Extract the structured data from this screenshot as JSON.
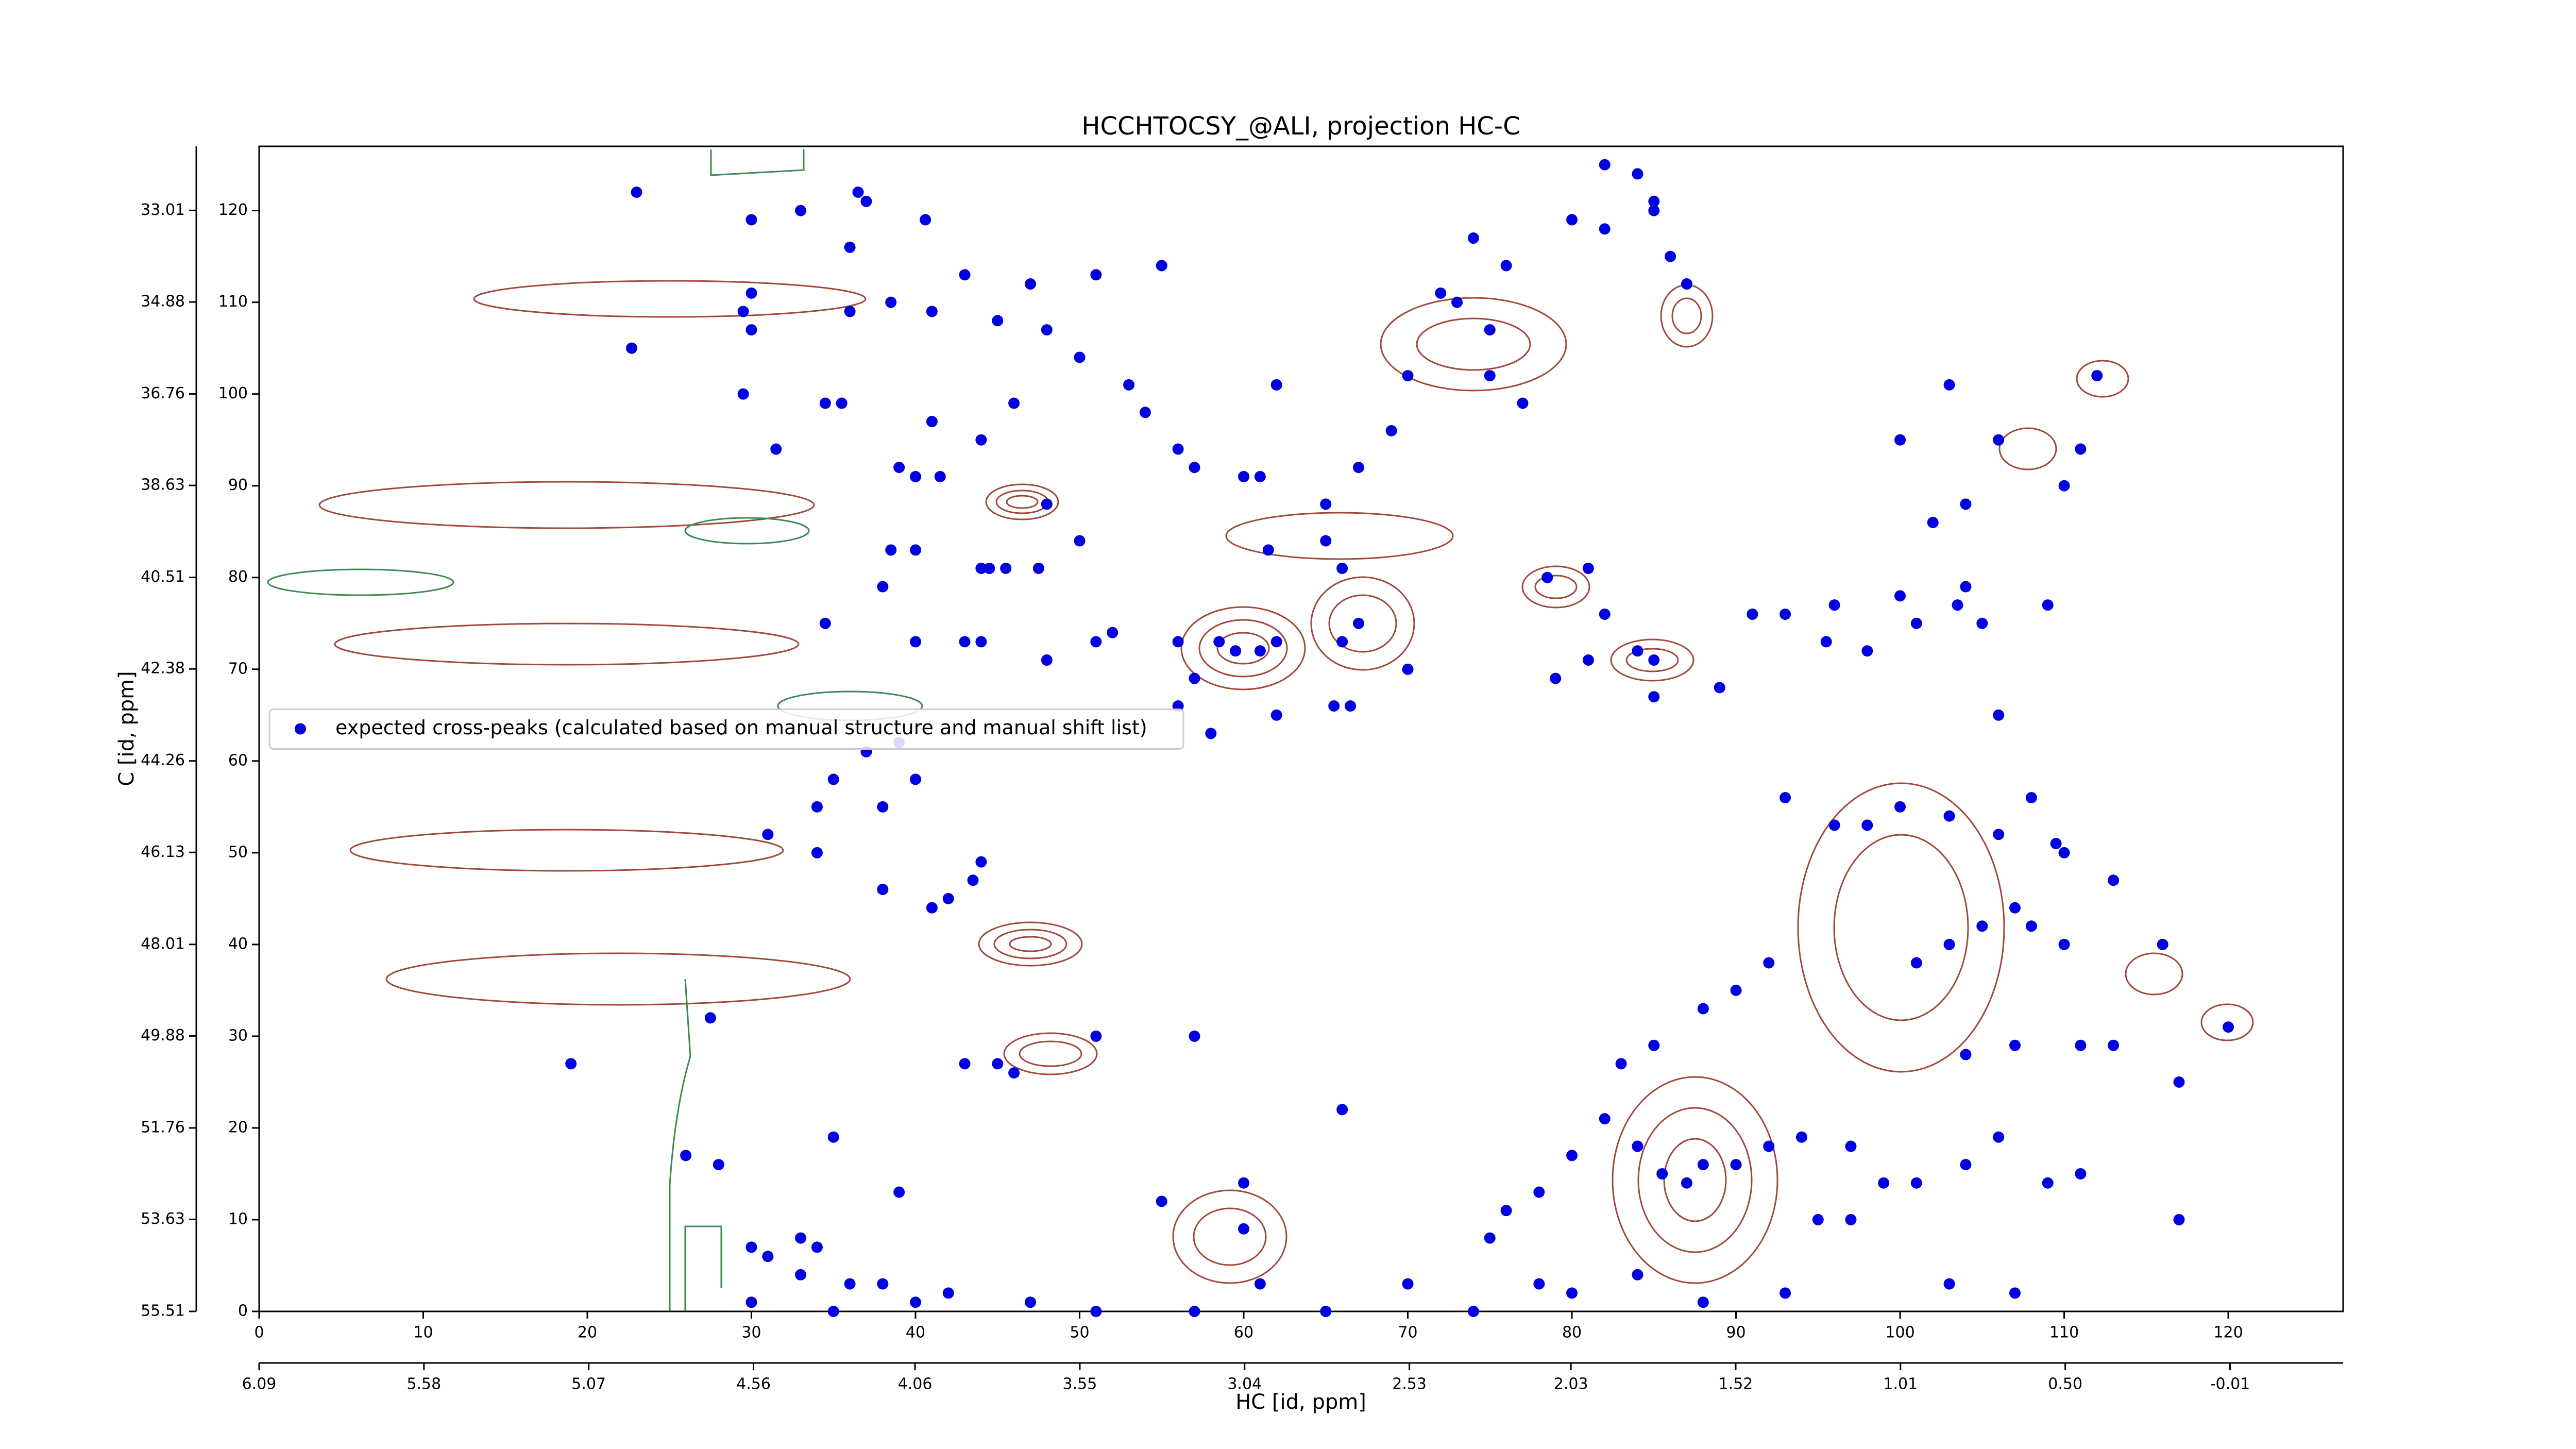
{
  "chart_data": {
    "type": "scatter",
    "title": "HCCHTOCSY_@ALI, projection HC-C",
    "xlabel": "HC [id, ppm]",
    "ylabel": "C [id, ppm]",
    "xlim": [
      0,
      127
    ],
    "ylim": [
      0,
      127
    ],
    "xticks": [
      0,
      10,
      20,
      30,
      40,
      50,
      60,
      70,
      80,
      90,
      100,
      110,
      120
    ],
    "yticks": [
      0,
      10,
      20,
      30,
      40,
      50,
      60,
      70,
      80,
      90,
      100,
      110,
      120
    ],
    "x2lim": [
      6.09,
      -0.36
    ],
    "x2ticks": [
      6.09,
      5.58,
      5.07,
      4.56,
      4.06,
      3.55,
      3.04,
      2.53,
      2.03,
      1.52,
      1.01,
      {
        "value": 0.5,
        "label": "0.50"
      },
      -0.01
    ],
    "y2lim": [
      55.51,
      31.7
    ],
    "y2ticks": [
      55.51,
      53.63,
      51.76,
      49.88,
      48.01,
      46.13,
      44.26,
      42.38,
      40.51,
      38.63,
      36.76,
      34.88,
      33.01
    ],
    "legend": "center left",
    "series": [
      {
        "name": "expected cross-peaks (calculated based on manual structure and manual shift list)",
        "color": "#0000e0",
        "x": [
          23,
          22.7,
          30,
          33,
          36.5,
          37,
          40.6,
          36,
          30,
          29.5,
          30,
          36,
          38.5,
          41,
          29.5,
          34.5,
          35.5,
          41,
          31.5,
          39,
          40,
          41.5,
          38.5,
          40,
          44,
          44.5,
          45.5,
          47.5,
          38,
          34.5,
          43,
          44,
          40,
          48,
          51,
          52,
          56,
          58.5,
          59.5,
          61,
          62,
          66,
          67,
          57,
          56,
          58,
          62,
          65.5,
          66.5,
          70,
          78.5,
          81,
          82,
          79,
          81,
          84,
          85,
          85,
          89,
          91,
          93,
          95.5,
          96,
          98,
          100,
          101,
          103.5,
          104,
          105,
          109,
          106,
          108,
          110,
          109.5,
          106,
          103,
          100,
          98,
          96,
          93,
          92,
          90,
          88,
          85,
          83,
          82,
          80,
          78,
          76,
          75,
          84,
          85.5,
          87,
          88,
          90,
          92,
          94,
          95,
          97,
          99,
          104,
          106,
          109,
          111,
          117,
          120,
          116,
          113,
          110,
          113,
          111,
          107,
          104,
          101,
          103,
          105,
          107,
          108,
          100,
          103,
          106,
          110,
          111,
          112,
          102,
          104,
          74,
          76,
          72,
          73,
          75,
          75,
          77,
          80,
          82,
          82,
          84,
          85,
          85,
          86,
          87,
          70,
          69,
          67,
          65,
          61,
          60,
          57,
          56,
          62,
          53,
          54,
          61.5,
          65,
          66,
          50,
          48,
          44,
          46,
          43,
          45,
          47,
          51,
          55,
          48,
          50,
          43.5,
          42,
          41,
          44,
          38,
          38,
          34,
          35,
          37,
          39,
          40,
          34,
          31,
          27.5,
          19,
          26,
          28,
          35,
          39,
          43,
          45,
          46,
          51,
          57,
          55,
          60,
          60,
          66,
          30,
          31,
          33,
          34,
          33,
          36,
          38,
          40,
          42,
          35,
          30,
          47,
          51,
          57,
          61,
          65,
          70,
          74,
          78,
          80,
          84,
          88,
          93,
          97,
          101,
          103,
          107,
          117
        ],
        "values": [
          122,
          105,
          119,
          120,
          122,
          121,
          119,
          116,
          111,
          109,
          107,
          109,
          110,
          109,
          100,
          99,
          99,
          97,
          94,
          92,
          91,
          91,
          83,
          83,
          81,
          81,
          81,
          81,
          79,
          75,
          73,
          73,
          73,
          71,
          73,
          74,
          73,
          73,
          72,
          72,
          73,
          73,
          75,
          69,
          66,
          63,
          65,
          66,
          66,
          70,
          80,
          81,
          76,
          69,
          71,
          72,
          71,
          67,
          68,
          76,
          76,
          73,
          77,
          72,
          78,
          75,
          77,
          79,
          75,
          77,
          65,
          56,
          50,
          51,
          52,
          54,
          55,
          53,
          53,
          56,
          38,
          35,
          33,
          29,
          27,
          21,
          17,
          13,
          11,
          8,
          18,
          15,
          14,
          16,
          16,
          18,
          19,
          10,
          18,
          14,
          16,
          19,
          14,
          15,
          25,
          31,
          40,
          47,
          40,
          29,
          29,
          29,
          28,
          38,
          40,
          42,
          44,
          42,
          95,
          101,
          95,
          90,
          94,
          102,
          86,
          88,
          117,
          114,
          111,
          110,
          107,
          102,
          99,
          119,
          118,
          125,
          124,
          121,
          120,
          115,
          112,
          102,
          96,
          92,
          88,
          91,
          91,
          92,
          94,
          101,
          101,
          98,
          83,
          84,
          81,
          84,
          88,
          95,
          99,
          113,
          108,
          112,
          113,
          114,
          107,
          104,
          47,
          45,
          44,
          49,
          46,
          55,
          55,
          58,
          61,
          62,
          58,
          50,
          52,
          32,
          27,
          17,
          16,
          19,
          13,
          27,
          27,
          26,
          30,
          30,
          12,
          9,
          14,
          22,
          7,
          6,
          8,
          7,
          4,
          3,
          3,
          1,
          2,
          0,
          1,
          1,
          0,
          0,
          3,
          0,
          3,
          0,
          3,
          2,
          4,
          1,
          2,
          10,
          14,
          3,
          2,
          10
        ]
      }
    ]
  }
}
